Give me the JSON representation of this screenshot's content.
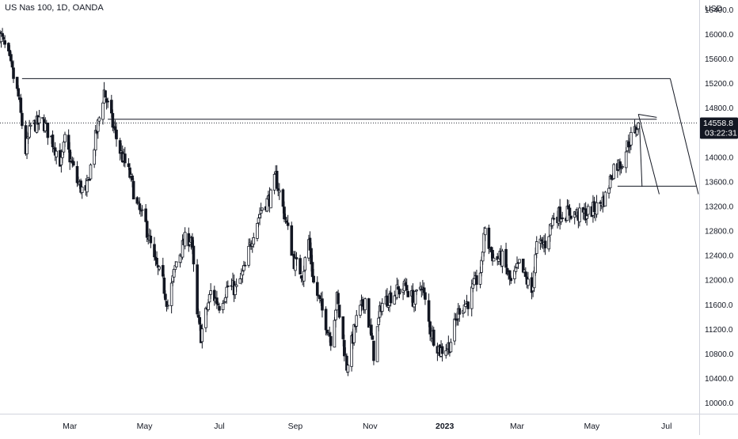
{
  "header": {
    "title": "US Nas 100, 1D, OANDA"
  },
  "price_axis": {
    "currency": "USD",
    "last_price": "14558.8",
    "countdown": "03:22:31",
    "last_price_bg": "#131722",
    "last_price_fg": "#ffffff"
  },
  "chart_data": {
    "type": "candlestick",
    "title": "US Nas 100, 1D, OANDA",
    "ylabel": "USD",
    "ylim": [
      9840,
      16560
    ],
    "ytick_values": [
      10000,
      10400,
      10800,
      11200,
      11600,
      12000,
      12400,
      12800,
      13200,
      13600,
      14000,
      14400,
      14800,
      15200,
      15600,
      16000,
      16400
    ],
    "ytick_labels": [
      "10000.0",
      "10400.0",
      "10800.0",
      "11200.0",
      "11600.0",
      "12000.0",
      "12400.0",
      "12800.0",
      "13200.0",
      "13600.0",
      "14000.0",
      "14400.0",
      "14800.0",
      "15200.0",
      "15600.0",
      "16000.0",
      "16400.0"
    ],
    "x_tick_labels": [
      "Mar",
      "May",
      "Jul",
      "Sep",
      "Nov",
      "2023",
      "Mar",
      "May",
      "Jul"
    ],
    "x_tick_dates": [
      "2022-03-01",
      "2022-05-01",
      "2022-07-01",
      "2022-09-01",
      "2022-11-01",
      "2023-01-01",
      "2023-03-01",
      "2023-05-01",
      "2023-07-01"
    ],
    "x_range": [
      "2022-01-03",
      "2023-07-27"
    ],
    "approx_closes": [
      [
        "2022-01-03",
        16010
      ],
      [
        "2022-01-10",
        15620
      ],
      [
        "2022-01-18",
        14980
      ],
      [
        "2022-01-24",
        14100
      ],
      [
        "2022-01-28",
        14500
      ],
      [
        "2022-02-07",
        14580
      ],
      [
        "2022-02-14",
        14300
      ],
      [
        "2022-02-22",
        13900
      ],
      [
        "2022-02-25",
        14270
      ],
      [
        "2022-03-07",
        13600
      ],
      [
        "2022-03-14",
        13380
      ],
      [
        "2022-03-21",
        14200
      ],
      [
        "2022-03-29",
        15080
      ],
      [
        "2022-04-04",
        14600
      ],
      [
        "2022-04-11",
        14100
      ],
      [
        "2022-04-19",
        13700
      ],
      [
        "2022-04-25",
        13200
      ],
      [
        "2022-05-02",
        12900
      ],
      [
        "2022-05-09",
        12300
      ],
      [
        "2022-05-16",
        11950
      ],
      [
        "2022-05-20",
        11600
      ],
      [
        "2022-05-27",
        12300
      ],
      [
        "2022-06-03",
        12650
      ],
      [
        "2022-06-08",
        12700
      ],
      [
        "2022-06-13",
        11400
      ],
      [
        "2022-06-16",
        11100
      ],
      [
        "2022-06-24",
        11800
      ],
      [
        "2022-07-01",
        11600
      ],
      [
        "2022-07-08",
        11900
      ],
      [
        "2022-07-15",
        11850
      ],
      [
        "2022-07-22",
        12200
      ],
      [
        "2022-07-29",
        12800
      ],
      [
        "2022-08-05",
        13200
      ],
      [
        "2022-08-12",
        13350
      ],
      [
        "2022-08-16",
        13680
      ],
      [
        "2022-08-24",
        13000
      ],
      [
        "2022-08-31",
        12300
      ],
      [
        "2022-09-07",
        12100
      ],
      [
        "2022-09-12",
        12650
      ],
      [
        "2022-09-16",
        11950
      ],
      [
        "2022-09-23",
        11500
      ],
      [
        "2022-09-30",
        11050
      ],
      [
        "2022-10-05",
        11700
      ],
      [
        "2022-10-13",
        10600
      ],
      [
        "2022-10-21",
        11350
      ],
      [
        "2022-10-28",
        11700
      ],
      [
        "2022-11-04",
        10800
      ],
      [
        "2022-11-10",
        11600
      ],
      [
        "2022-11-18",
        11750
      ],
      [
        "2022-11-30",
        11900
      ],
      [
        "2022-12-07",
        11650
      ],
      [
        "2022-12-13",
        11950
      ],
      [
        "2022-12-20",
        11200
      ],
      [
        "2022-12-28",
        10850
      ],
      [
        "2023-01-05",
        10950
      ],
      [
        "2023-01-13",
        11550
      ],
      [
        "2023-01-20",
        11650
      ],
      [
        "2023-01-31",
        12200
      ],
      [
        "2023-02-02",
        12800
      ],
      [
        "2023-02-10",
        12350
      ],
      [
        "2023-02-17",
        12350
      ],
      [
        "2023-02-24",
        11950
      ],
      [
        "2023-03-03",
        12250
      ],
      [
        "2023-03-13",
        11800
      ],
      [
        "2023-03-17",
        12550
      ],
      [
        "2023-03-24",
        12600
      ],
      [
        "2023-03-31",
        13050
      ],
      [
        "2023-04-07",
        13080
      ],
      [
        "2023-04-14",
        13100
      ],
      [
        "2023-04-21",
        13050
      ],
      [
        "2023-04-28",
        13100
      ],
      [
        "2023-05-05",
        13180
      ],
      [
        "2023-05-12",
        13350
      ],
      [
        "2023-05-19",
        13850
      ],
      [
        "2023-05-25",
        13900
      ],
      [
        "2023-05-31",
        14250
      ],
      [
        "2023-06-06",
        14450
      ],
      [
        "2023-06-08",
        14558.8
      ]
    ],
    "horizontal_levels": [
      {
        "value": 15280,
        "from": "2022-01-21",
        "to": "2023-07-04",
        "style": "solid"
      },
      {
        "value": 14620,
        "from": "2022-04-01",
        "to": "2023-06-23",
        "style": "solid"
      },
      {
        "value": 14558.8,
        "from": "2022-01-03",
        "to": "2023-07-27",
        "style": "dotted"
      },
      {
        "value": 13530,
        "from": "2023-05-22",
        "to": "2023-07-25",
        "style": "solid"
      }
    ],
    "trend_lines": [
      {
        "from": [
          "2023-06-08",
          14700
        ],
        "to": [
          "2023-06-25",
          13400
        ]
      },
      {
        "from": [
          "2023-06-08",
          14700
        ],
        "to": [
          "2023-06-23",
          14650
        ]
      },
      {
        "from": [
          "2023-07-04",
          15280
        ],
        "to": [
          "2023-07-27",
          13400
        ]
      },
      {
        "from": [
          "2023-06-09",
          14510
        ],
        "to": [
          "2023-06-11",
          13520
        ]
      }
    ]
  },
  "colors": {
    "candle_up_body": "#ffffff",
    "candle_down_body": "#131722",
    "candle_outline": "#131722",
    "axis_line": "#d1d4dc",
    "text": "#131722"
  }
}
